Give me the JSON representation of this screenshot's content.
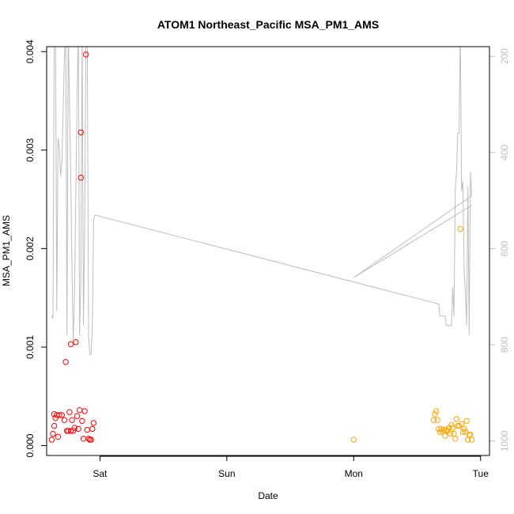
{
  "chart_data": {
    "type": "scatter",
    "title": "ATOM1 Northeast_Pacific MSA_PM1_AMS",
    "xlabel": "Date",
    "ylabel": "MSA_PM1_AMS",
    "x_ticks": [
      {
        "day": 1.0,
        "label": "Sat"
      },
      {
        "day": 2.0,
        "label": "Sun"
      },
      {
        "day": 3.0,
        "label": "Mon"
      },
      {
        "day": 4.0,
        "label": "Tue"
      }
    ],
    "xlim": [
      0.58,
      4.07
    ],
    "ylim": [
      -0.0001,
      0.00405
    ],
    "y_ticks": [
      {
        "value": 0.0,
        "label": "0.000"
      },
      {
        "value": 0.001,
        "label": "0.001"
      },
      {
        "value": 0.002,
        "label": "0.002"
      },
      {
        "value": 0.003,
        "label": "0.003"
      },
      {
        "value": 0.004,
        "label": "0.004"
      }
    ],
    "secondary_y_reversed": true,
    "secondary_ylim": [
      1030,
      180
    ],
    "secondary_y_ticks": [
      {
        "value": 200,
        "label": "200"
      },
      {
        "value": 400,
        "label": "400"
      },
      {
        "value": 600,
        "label": "600"
      },
      {
        "value": 800,
        "label": "800"
      },
      {
        "value": 1000,
        "label": "1000"
      }
    ],
    "grid": false,
    "series": [
      {
        "color": "#ff0000",
        "marker": "open-circle",
        "points": [
          [
            0.62,
            6e-05
          ],
          [
            0.63,
            0.00012
          ],
          [
            0.64,
            0.00032
          ],
          [
            0.64,
            0.0002
          ],
          [
            0.65,
            0.00028
          ],
          [
            0.66,
            0.00031
          ],
          [
            0.67,
            9e-05
          ],
          [
            0.68,
            0.00031
          ],
          [
            0.7,
            0.00031
          ],
          [
            0.72,
            0.00026
          ],
          [
            0.73,
            0.00085
          ],
          [
            0.74,
            0.00015
          ],
          [
            0.75,
            0.00015
          ],
          [
            0.76,
            0.00034
          ],
          [
            0.77,
            0.00103
          ],
          [
            0.77,
            0.00015
          ],
          [
            0.78,
            0.00026
          ],
          [
            0.79,
            0.00015
          ],
          [
            0.8,
            0.00018
          ],
          [
            0.81,
            0.00105
          ],
          [
            0.82,
            0.0003
          ],
          [
            0.83,
            0.00017
          ],
          [
            0.84,
            0.00036
          ],
          [
            0.85,
            0.00318
          ],
          [
            0.85,
            0.00272
          ],
          [
            0.86,
            0.00025
          ],
          [
            0.87,
            7e-05
          ],
          [
            0.88,
            0.00035
          ],
          [
            0.89,
            0.00397
          ],
          [
            0.9,
            0.00016
          ],
          [
            0.91,
            7e-05
          ],
          [
            0.92,
            6e-05
          ],
          [
            0.93,
            6e-05
          ],
          [
            0.94,
            0.00017
          ],
          [
            0.95,
            0.00023
          ]
        ]
      },
      {
        "color": "#ffa500",
        "marker": "open-circle",
        "points": [
          [
            3.0,
            6e-05
          ],
          [
            3.63,
            0.00026
          ],
          [
            3.64,
            0.00032
          ],
          [
            3.65,
            0.00035
          ],
          [
            3.66,
            0.00026
          ],
          [
            3.67,
            0.00017
          ],
          [
            3.68,
            0.00014
          ],
          [
            3.69,
            0.00017
          ],
          [
            3.7,
            0.00014
          ],
          [
            3.71,
            0.00016
          ],
          [
            3.72,
            0.0001
          ],
          [
            3.73,
            0.00016
          ],
          [
            3.74,
            0.00015
          ],
          [
            3.75,
            0.00018
          ],
          [
            3.76,
            0.00012
          ],
          [
            3.77,
            0.00021
          ],
          [
            3.78,
            0.00018
          ],
          [
            3.79,
            0.00012
          ],
          [
            3.8,
            7e-05
          ],
          [
            3.81,
            0.00027
          ],
          [
            3.82,
            0.0002
          ],
          [
            3.83,
            0.0002
          ],
          [
            3.84,
            0.0022
          ],
          [
            3.85,
            0.00022
          ],
          [
            3.86,
            0.00014
          ],
          [
            3.87,
            0.00017
          ],
          [
            3.88,
            0.00014
          ],
          [
            3.89,
            0.00025
          ],
          [
            3.9,
            6e-05
          ],
          [
            3.91,
            0.00011
          ],
          [
            3.92,
            0.00011
          ],
          [
            3.93,
            6e-05
          ]
        ]
      }
    ],
    "secondary_line": {
      "color": "#bebebe",
      "points": [
        [
          0.62,
          740
        ],
        [
          0.63,
          745
        ],
        [
          0.64,
          140
        ],
        [
          0.65,
          140
        ],
        [
          0.66,
          730
        ],
        [
          0.67,
          370
        ],
        [
          0.68,
          390
        ],
        [
          0.69,
          450
        ],
        [
          0.7,
          420
        ],
        [
          0.71,
          310
        ],
        [
          0.72,
          200
        ],
        [
          0.73,
          140
        ],
        [
          0.74,
          780
        ],
        [
          0.75,
          140
        ],
        [
          0.76,
          300
        ],
        [
          0.77,
          450
        ],
        [
          0.78,
          650
        ],
        [
          0.79,
          790
        ],
        [
          0.8,
          690
        ],
        [
          0.81,
          480
        ],
        [
          0.82,
          280
        ],
        [
          0.83,
          140
        ],
        [
          0.84,
          780
        ],
        [
          0.85,
          660
        ],
        [
          0.86,
          140
        ],
        [
          0.87,
          760
        ],
        [
          0.88,
          560
        ],
        [
          0.89,
          140
        ],
        [
          0.9,
          140
        ],
        [
          0.91,
          780
        ],
        [
          0.92,
          820
        ],
        [
          0.93,
          820
        ],
        [
          0.94,
          760
        ],
        [
          0.95,
          540
        ],
        [
          0.96,
          530
        ],
        [
          3.67,
          715
        ],
        [
          3.68,
          740
        ],
        [
          3.7,
          740
        ],
        [
          3.72,
          740
        ],
        [
          3.73,
          760
        ],
        [
          3.74,
          760
        ],
        [
          3.76,
          760
        ],
        [
          3.77,
          760
        ],
        [
          3.78,
          680
        ],
        [
          3.79,
          740
        ],
        [
          3.8,
          480
        ],
        [
          3.81,
          440
        ],
        [
          3.82,
          360
        ],
        [
          3.83,
          360
        ],
        [
          3.84,
          140
        ],
        [
          3.85,
          480
        ],
        [
          3.86,
          460
        ],
        [
          3.87,
          640
        ],
        [
          3.88,
          690
        ],
        [
          3.89,
          760
        ],
        [
          3.9,
          470
        ],
        [
          3.91,
          780
        ],
        [
          3.92,
          440
        ],
        [
          3.93,
          490
        ],
        [
          3.0,
          660
        ],
        [
          3.93,
          510
        ]
      ]
    }
  }
}
